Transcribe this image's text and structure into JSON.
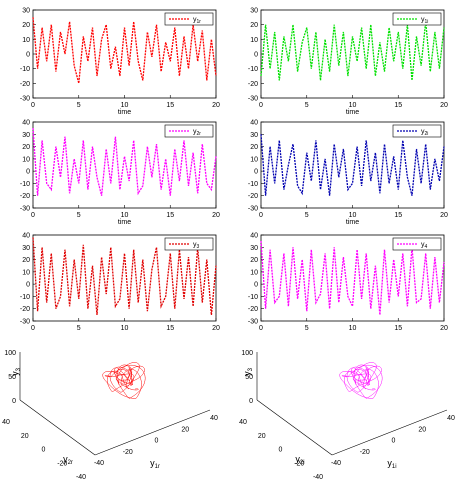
{
  "figure": {
    "panels": [
      {
        "id": "y1r",
        "color": "#ff0000",
        "legend": "y",
        "legend_sub": "1r",
        "xlabel": "time",
        "xticks": [
          "0",
          "5",
          "10",
          "15",
          "20"
        ],
        "yticks": [
          "30",
          "20",
          "10",
          "0",
          "-10",
          "-20",
          "-30"
        ]
      },
      {
        "id": "y1i",
        "color": "#00e000",
        "legend": "y",
        "legend_sub": "1i",
        "xlabel": "time",
        "xticks": [
          "0",
          "5",
          "10",
          "15",
          "20"
        ],
        "yticks": [
          "30",
          "20",
          "10",
          "0",
          "-10",
          "-20",
          "-30"
        ]
      },
      {
        "id": "y2r",
        "color": "#ff00ff",
        "legend": "y",
        "legend_sub": "2r",
        "xlabel": "time",
        "xticks": [
          "0",
          "5",
          "10",
          "15",
          "20"
        ],
        "yticks": [
          "40",
          "30",
          "20",
          "10",
          "0",
          "-10",
          "-20",
          "-30"
        ]
      },
      {
        "id": "y2i",
        "color": "#0000b0",
        "legend": "y",
        "legend_sub": "2i",
        "xlabel": "time",
        "xticks": [
          "0",
          "5",
          "10",
          "15",
          "20"
        ],
        "yticks": [
          "40",
          "30",
          "20",
          "10",
          "0",
          "-10",
          "-20",
          "-30"
        ]
      },
      {
        "id": "y3",
        "color": "#e00000",
        "legend": "y",
        "legend_sub": "3",
        "xlabel": "",
        "xticks": [
          "0",
          "5",
          "10",
          "15",
          "20"
        ],
        "yticks": [
          "40",
          "30",
          "20",
          "10",
          "0",
          "-10",
          "-20",
          "-30"
        ]
      },
      {
        "id": "y4",
        "color": "#ff00ff",
        "legend": "y",
        "legend_sub": "4",
        "xlabel": "",
        "xticks": [
          "0",
          "5",
          "10",
          "15",
          "20"
        ],
        "yticks": [
          "40",
          "30",
          "20",
          "10",
          "0",
          "-10",
          "-20",
          "-30"
        ]
      }
    ],
    "phase_left": {
      "color": "#ff0000",
      "zlabel": "y",
      "zlabel_sub": "3",
      "ylabel": "y",
      "ylabel_sub": "2r",
      "xlabel": "y",
      "xlabel_sub": "1r",
      "zticks": [
        "100",
        "50",
        "0"
      ],
      "yticks": [
        "40",
        "20",
        "0",
        "-20",
        "-40"
      ],
      "xticks": [
        "-40",
        "-20",
        "0",
        "20",
        "40"
      ]
    },
    "phase_right": {
      "color": "#ff00ff",
      "zlabel": "y",
      "zlabel_sub": "3",
      "ylabel": "y",
      "ylabel_sub": "2i",
      "xlabel": "y",
      "xlabel_sub": "1i",
      "zticks": [
        "100",
        "50",
        "0"
      ],
      "yticks": [
        "40",
        "20",
        "0",
        "-20",
        "-40"
      ],
      "xticks": [
        "-40",
        "-20",
        "0",
        "20",
        "40"
      ]
    }
  },
  "chart_data": [
    {
      "type": "line",
      "series": [
        {
          "name": "y1r"
        }
      ],
      "xlabel": "time",
      "xlim": [
        0,
        20
      ],
      "ylim": [
        -30,
        30
      ],
      "x": [
        0,
        0.5,
        1,
        1.5,
        2,
        2.5,
        3,
        3.5,
        4,
        4.5,
        5,
        5.5,
        6,
        6.5,
        7,
        7.5,
        8,
        8.5,
        9,
        9.5,
        10,
        10.5,
        11,
        11.5,
        12,
        12.5,
        13,
        13.5,
        14,
        14.5,
        15,
        15.5,
        16,
        16.5,
        17,
        17.5,
        18,
        18.5,
        19,
        19.5,
        20
      ],
      "values": [
        25,
        -10,
        18,
        -5,
        20,
        -12,
        15,
        0,
        22,
        -8,
        -20,
        12,
        -5,
        18,
        -15,
        10,
        20,
        -10,
        5,
        -15,
        18,
        -8,
        22,
        -5,
        -18,
        15,
        -2,
        20,
        -12,
        8,
        -5,
        18,
        -15,
        12,
        -10,
        20,
        -5,
        16,
        -18,
        10,
        -15
      ]
    },
    {
      "type": "line",
      "series": [
        {
          "name": "y1i"
        }
      ],
      "xlabel": "time",
      "xlim": [
        0,
        20
      ],
      "ylim": [
        -30,
        30
      ],
      "x": [
        0,
        0.5,
        1,
        1.5,
        2,
        2.5,
        3,
        3.5,
        4,
        4.5,
        5,
        5.5,
        6,
        6.5,
        7,
        7.5,
        8,
        8.5,
        9,
        9.5,
        10,
        10.5,
        11,
        11.5,
        12,
        12.5,
        13,
        13.5,
        14,
        14.5,
        15,
        15.5,
        16,
        16.5,
        17,
        17.5,
        18,
        18.5,
        19,
        19.5,
        20
      ],
      "values": [
        -15,
        20,
        -10,
        15,
        -18,
        12,
        -5,
        20,
        -12,
        8,
        18,
        -10,
        15,
        -18,
        10,
        -12,
        20,
        -8,
        15,
        -15,
        12,
        -5,
        18,
        -10,
        20,
        -15,
        8,
        -12,
        18,
        -5,
        15,
        -10,
        20,
        -18,
        12,
        -8,
        22,
        -12,
        15,
        -10,
        18
      ]
    },
    {
      "type": "line",
      "series": [
        {
          "name": "y2r"
        }
      ],
      "xlabel": "time",
      "xlim": [
        0,
        20
      ],
      "ylim": [
        -30,
        40
      ],
      "x": [
        0,
        0.5,
        1,
        1.5,
        2,
        2.5,
        3,
        3.5,
        4,
        4.5,
        5,
        5.5,
        6,
        6.5,
        7,
        7.5,
        8,
        8.5,
        9,
        9.5,
        10,
        10.5,
        11,
        11.5,
        12,
        12.5,
        13,
        13.5,
        14,
        14.5,
        15,
        15.5,
        16,
        16.5,
        17,
        17.5,
        18,
        18.5,
        19,
        19.5,
        20
      ],
      "values": [
        35,
        -20,
        25,
        -10,
        -15,
        20,
        -5,
        28,
        -18,
        10,
        -10,
        25,
        -15,
        20,
        -5,
        -20,
        18,
        -10,
        28,
        -15,
        12,
        -8,
        25,
        -18,
        -12,
        20,
        -5,
        22,
        -15,
        10,
        -20,
        18,
        -8,
        25,
        -12,
        15,
        -18,
        22,
        -10,
        -15,
        12
      ]
    },
    {
      "type": "line",
      "series": [
        {
          "name": "y2i"
        }
      ],
      "xlabel": "time",
      "xlim": [
        0,
        20
      ],
      "ylim": [
        -30,
        40
      ],
      "x": [
        0,
        0.5,
        1,
        1.5,
        2,
        2.5,
        3,
        3.5,
        4,
        4.5,
        5,
        5.5,
        6,
        6.5,
        7,
        7.5,
        8,
        8.5,
        9,
        9.5,
        10,
        10.5,
        11,
        11.5,
        12,
        12.5,
        13,
        13.5,
        14,
        14.5,
        15,
        15.5,
        16,
        16.5,
        17,
        17.5,
        18,
        18.5,
        19,
        19.5,
        20
      ],
      "values": [
        30,
        -20,
        20,
        -10,
        25,
        -15,
        5,
        22,
        -12,
        -18,
        15,
        -8,
        25,
        -15,
        10,
        -20,
        22,
        -5,
        18,
        -15,
        -10,
        20,
        -12,
        25,
        -8,
        15,
        -18,
        22,
        -10,
        12,
        -15,
        25,
        -5,
        -20,
        18,
        -10,
        22,
        -15,
        10,
        -8,
        20
      ]
    },
    {
      "type": "line",
      "series": [
        {
          "name": "y3"
        }
      ],
      "xlim": [
        0,
        20
      ],
      "ylim": [
        -30,
        40
      ],
      "x": [
        0,
        0.5,
        1,
        1.5,
        2,
        2.5,
        3,
        3.5,
        4,
        4.5,
        5,
        5.5,
        6,
        6.5,
        7,
        7.5,
        8,
        8.5,
        9,
        9.5,
        10,
        10.5,
        11,
        11.5,
        12,
        12.5,
        13,
        13.5,
        14,
        14.5,
        15,
        15.5,
        16,
        16.5,
        17,
        17.5,
        18,
        18.5,
        19,
        19.5,
        20
      ],
      "values": [
        38,
        -22,
        30,
        -15,
        25,
        -20,
        -10,
        28,
        -18,
        20,
        -12,
        32,
        -20,
        15,
        -25,
        22,
        -8,
        30,
        -18,
        -12,
        25,
        -20,
        28,
        -15,
        20,
        -22,
        12,
        30,
        -18,
        -10,
        25,
        -20,
        28,
        -12,
        22,
        -18,
        30,
        -15,
        20,
        -25,
        15
      ]
    },
    {
      "type": "line",
      "series": [
        {
          "name": "y4"
        }
      ],
      "xlim": [
        0,
        20
      ],
      "ylim": [
        -30,
        40
      ],
      "x": [
        0,
        0.5,
        1,
        1.5,
        2,
        2.5,
        3,
        3.5,
        4,
        4.5,
        5,
        5.5,
        6,
        6.5,
        7,
        7.5,
        8,
        8.5,
        9,
        9.5,
        10,
        10.5,
        11,
        11.5,
        12,
        12.5,
        13,
        13.5,
        14,
        14.5,
        15,
        15.5,
        16,
        16.5,
        17,
        17.5,
        18,
        18.5,
        19,
        19.5,
        20
      ],
      "values": [
        35,
        -20,
        28,
        -15,
        -10,
        25,
        -18,
        30,
        -12,
        20,
        -22,
        28,
        -15,
        -8,
        25,
        -20,
        30,
        -15,
        22,
        -10,
        -18,
        28,
        -12,
        25,
        -20,
        15,
        -25,
        28,
        -15,
        20,
        -10,
        25,
        -18,
        30,
        -15,
        -12,
        25,
        -20,
        22,
        -15,
        18
      ]
    }
  ]
}
